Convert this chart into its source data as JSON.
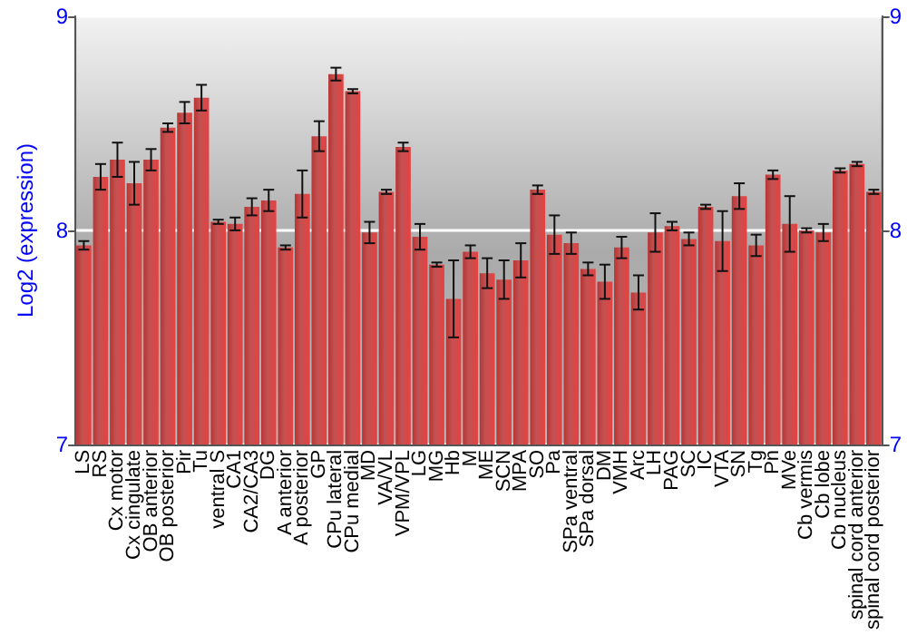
{
  "chart_data": {
    "type": "bar",
    "ylabel": "Log2 (expression)",
    "categories": [
      "LS",
      "RS",
      "Cx motor",
      "Cx cingulate",
      "OB anterior",
      "OB posterior",
      "Pir",
      "Tu",
      "ventral S",
      "CA1",
      "CA2/CA3",
      "DG",
      "A anterior",
      "A posterior",
      "GP",
      "CPu lateral",
      "CPu medial",
      "MD",
      "VA/VL",
      "VPM/VPL",
      "LG",
      "MG",
      "Hb",
      "M",
      "ME",
      "SCN",
      "MPA",
      "SO",
      "Pa",
      "SPa ventral",
      "SPa dorsal",
      "DM",
      "VMH",
      "Arc",
      "LH",
      "PAG",
      "SC",
      "IC",
      "VTA",
      "SN",
      "Tg",
      "Pn",
      "MVe",
      "Cb vermis",
      "Cb lobe",
      "Cb nucleus",
      "spinal cord anterior",
      "spinal cord posterior"
    ],
    "values": [
      7.93,
      8.25,
      8.33,
      8.22,
      8.33,
      8.48,
      8.55,
      8.62,
      8.04,
      8.03,
      8.11,
      8.14,
      7.92,
      8.17,
      8.44,
      8.73,
      8.65,
      7.99,
      8.18,
      8.39,
      7.97,
      7.84,
      7.68,
      7.9,
      7.8,
      7.77,
      7.86,
      8.19,
      7.98,
      7.94,
      7.82,
      7.76,
      7.92,
      7.71,
      7.99,
      8.02,
      7.96,
      8.11,
      7.95,
      8.16,
      7.93,
      8.26,
      8.03,
      8.0,
      7.99,
      8.28,
      8.31,
      8.18
    ],
    "errors": [
      0.02,
      0.06,
      0.08,
      0.1,
      0.05,
      0.02,
      0.05,
      0.06,
      0.01,
      0.03,
      0.04,
      0.05,
      0.01,
      0.11,
      0.07,
      0.03,
      0.01,
      0.05,
      0.01,
      0.02,
      0.06,
      0.01,
      0.18,
      0.03,
      0.07,
      0.09,
      0.08,
      0.02,
      0.09,
      0.05,
      0.03,
      0.08,
      0.05,
      0.08,
      0.09,
      0.02,
      0.03,
      0.01,
      0.14,
      0.06,
      0.05,
      0.02,
      0.13,
      0.01,
      0.04,
      0.01,
      0.01,
      0.01
    ],
    "color": "#b83434",
    "ylim": [
      7,
      9
    ],
    "yticks": [
      7,
      8,
      9
    ],
    "y2lim": [
      7,
      9
    ],
    "y2ticks": [
      7,
      8,
      9
    ],
    "grid": "y"
  }
}
